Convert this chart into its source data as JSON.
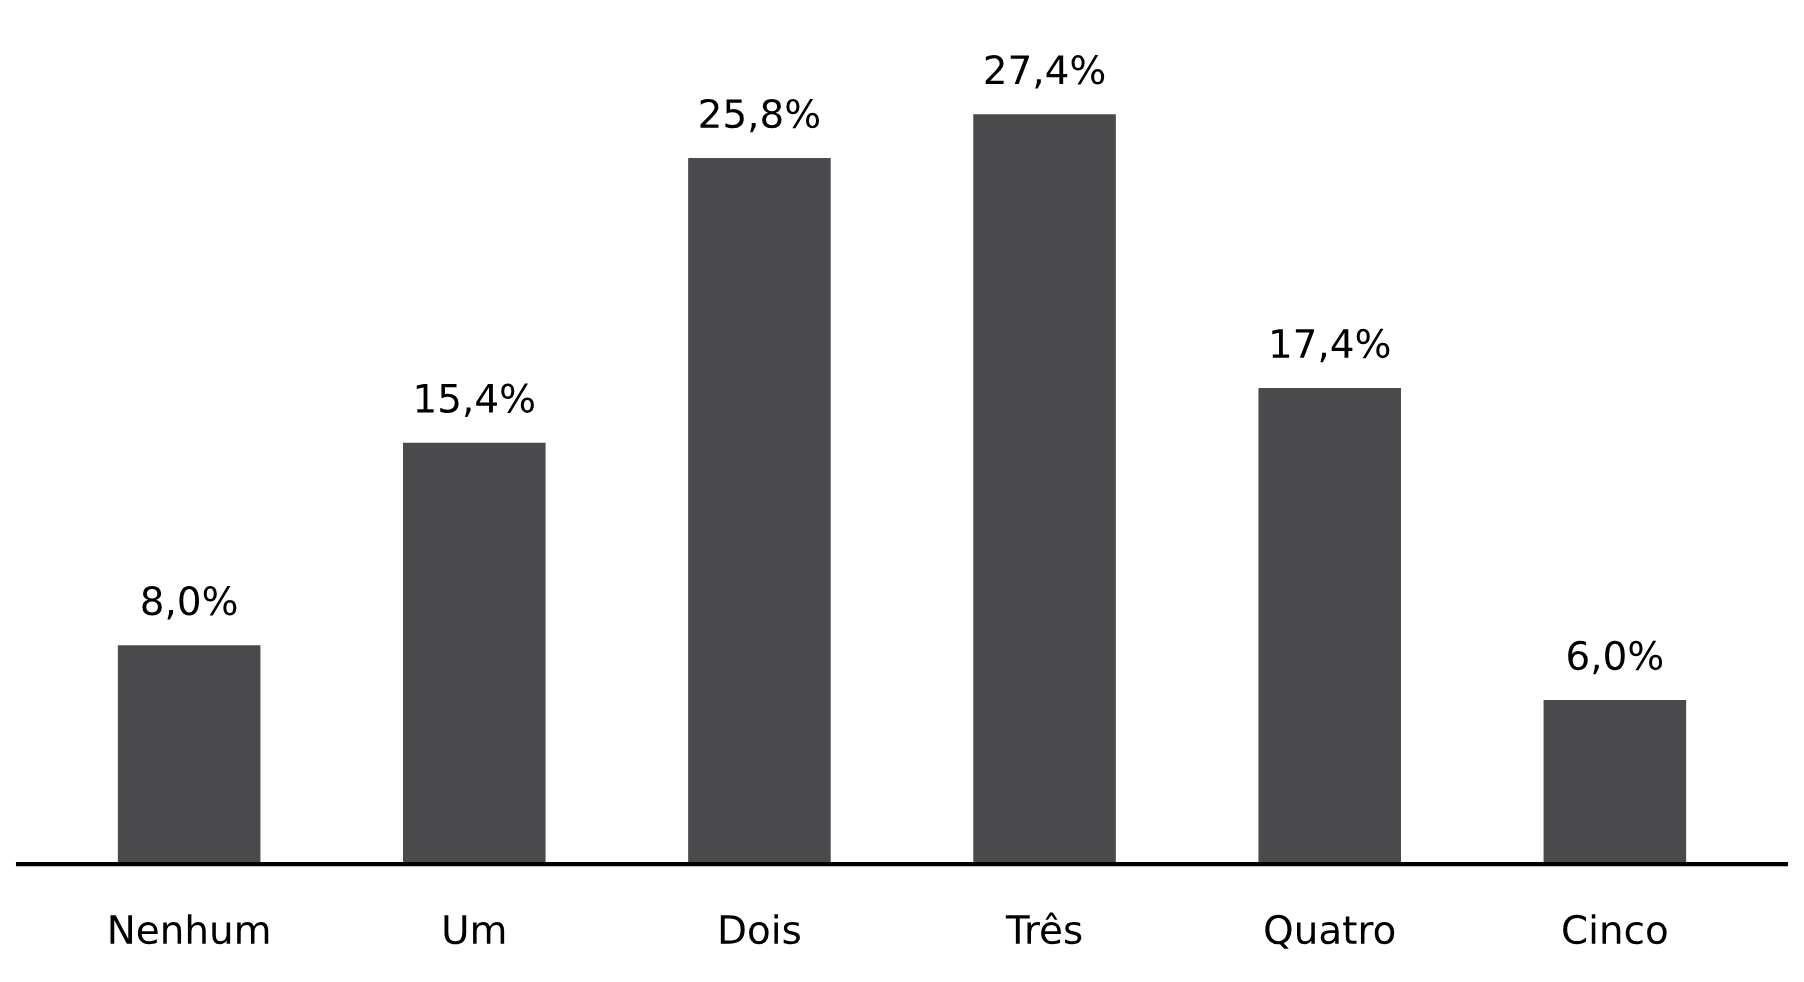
{
  "chart_data": {
    "type": "bar",
    "categories": [
      "Nenhum",
      "Um",
      "Dois",
      "Três",
      "Quatro",
      "Cinco"
    ],
    "values": [
      8.0,
      15.4,
      25.8,
      27.4,
      17.4,
      6.0
    ],
    "value_labels": [
      "8,0%",
      "15,4%",
      "25,8%",
      "27,4%",
      "17,4%",
      "6,0%"
    ],
    "color": "#4a4a4c",
    "grid": false,
    "legend": false
  }
}
